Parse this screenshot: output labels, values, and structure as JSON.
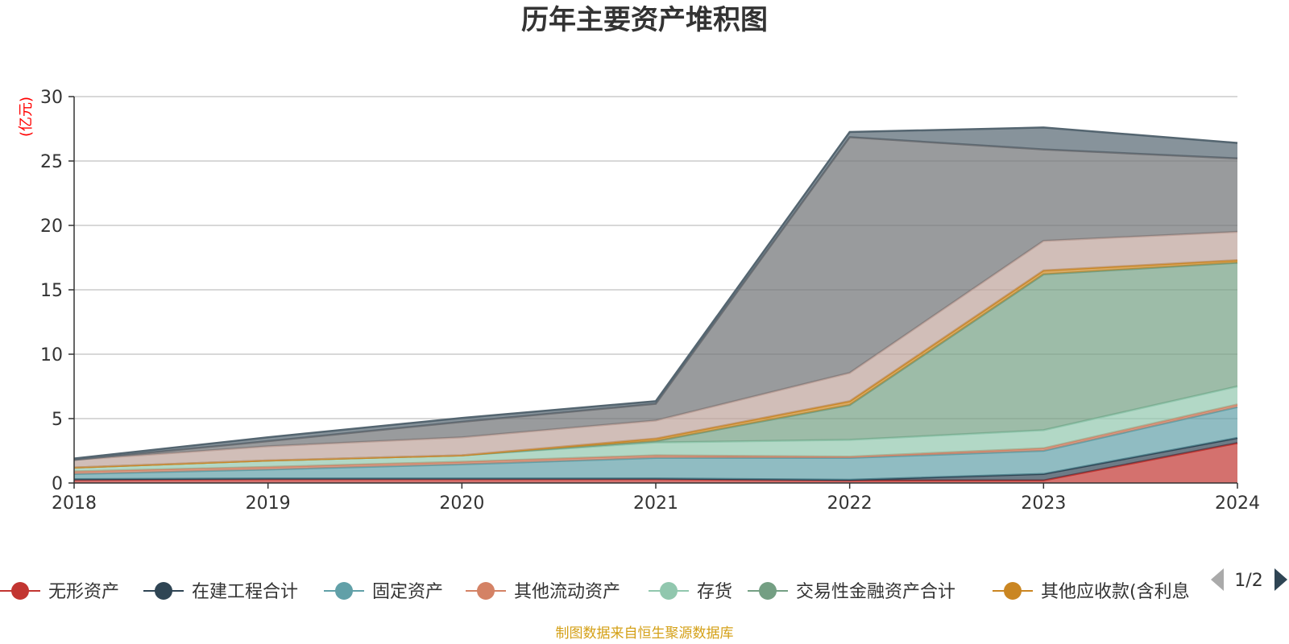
{
  "chart_data": {
    "type": "area",
    "title": "历年主要资产堆积图",
    "ylabel": "(亿元)",
    "ylim": [
      0,
      30
    ],
    "yticks": [
      0,
      5,
      10,
      15,
      20,
      25,
      30
    ],
    "x": [
      "2018",
      "2019",
      "2020",
      "2021",
      "2022",
      "2023",
      "2024"
    ],
    "grid": true,
    "legend_position": "bottom",
    "series": [
      {
        "name": "无形资产",
        "color": "#c23531",
        "values": [
          0.25,
          0.3,
          0.3,
          0.3,
          0.2,
          0.2,
          3.1
        ]
      },
      {
        "name": "在建工程合计",
        "color": "#2f4554",
        "values": [
          0.05,
          0.05,
          0.05,
          0.05,
          0.05,
          0.5,
          0.4
        ]
      },
      {
        "name": "固定资产",
        "color": "#61a0a8",
        "values": [
          0.4,
          0.7,
          1.1,
          1.6,
          1.7,
          1.8,
          2.4
        ]
      },
      {
        "name": "其他流动资产",
        "color": "#d48265",
        "values": [
          0.2,
          0.2,
          0.2,
          0.2,
          0.1,
          0.2,
          0.2
        ]
      },
      {
        "name": "存货",
        "color": "#91c7ae",
        "values": [
          0.3,
          0.5,
          0.5,
          1.0,
          1.3,
          1.4,
          1.4
        ]
      },
      {
        "name": "交易性金融资产合计",
        "color": "#749f83",
        "values": [
          0.0,
          0.0,
          0.0,
          0.1,
          2.7,
          12.1,
          9.6
        ]
      },
      {
        "name": "其他应收款(含利息和股利)",
        "color": "#ca8622",
        "values": [
          0.0,
          0.0,
          0.0,
          0.2,
          0.3,
          0.3,
          0.2
        ]
      },
      {
        "name": "",
        "color": "#bda29a",
        "values": [
          0.6,
          1.1,
          1.4,
          1.4,
          2.2,
          2.3,
          2.2
        ]
      },
      {
        "name": "",
        "color": "#6e7074",
        "values": [
          0.0,
          0.4,
          1.2,
          1.3,
          18.3,
          7.1,
          5.7
        ]
      },
      {
        "name": "",
        "color": "#546570",
        "values": [
          0.1,
          0.3,
          0.3,
          0.2,
          0.4,
          1.7,
          1.2
        ]
      }
    ]
  },
  "legend": {
    "page": "1/2",
    "visible_labels": [
      "无形资产",
      "在建工程合计",
      "固定资产",
      "其他流动资产",
      "存货",
      "交易性金融资产合计",
      "其他应收款(含利息"
    ]
  },
  "source_note": "制图数据来自恒生聚源数据库"
}
